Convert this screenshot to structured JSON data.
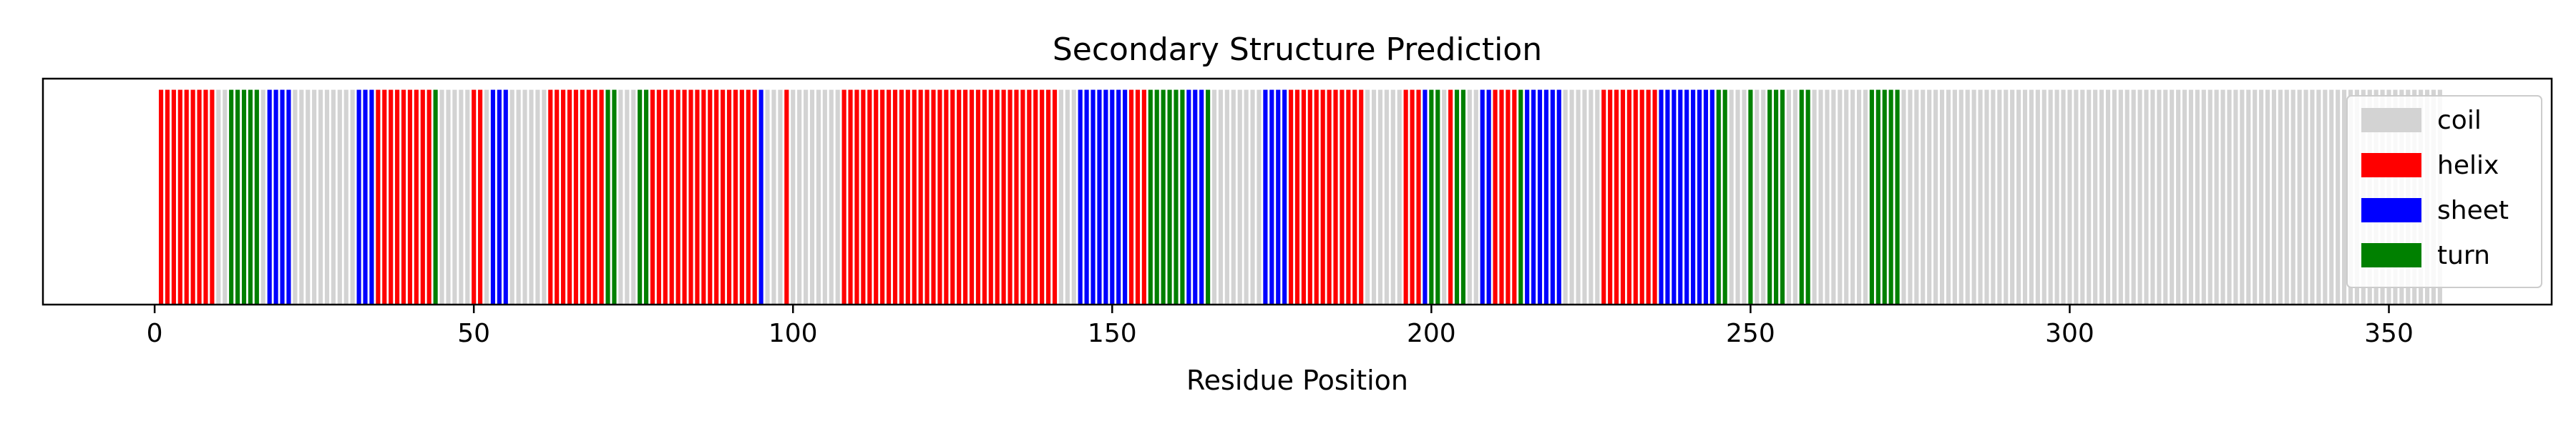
{
  "chart_data": {
    "type": "bar",
    "title": "Secondary Structure Prediction",
    "xlabel": "Residue Position",
    "ylabel": "",
    "xlim": [
      -17.5,
      375.5
    ],
    "ylim": [
      0,
      1.05
    ],
    "grid": false,
    "legend_position": "top-right",
    "x_ticks": [
      0,
      50,
      100,
      150,
      200,
      250,
      300,
      350
    ],
    "legend": [
      {
        "label": "coil",
        "color": "#d3d3d3"
      },
      {
        "label": "helix",
        "color": "#ff0000"
      },
      {
        "label": "sheet",
        "color": "#0000ff"
      },
      {
        "label": "turn",
        "color": "#008000"
      }
    ],
    "colors": {
      "coil": "#d3d3d3",
      "helix": "#ff0000",
      "sheet": "#0000ff",
      "turn": "#008000"
    },
    "bar_value": 1,
    "segments": [
      {
        "start": 1,
        "end": 9,
        "type": "helix"
      },
      {
        "start": 10,
        "end": 11,
        "type": "coil"
      },
      {
        "start": 12,
        "end": 16,
        "type": "turn"
      },
      {
        "start": 17,
        "end": 17,
        "type": "coil"
      },
      {
        "start": 18,
        "end": 21,
        "type": "sheet"
      },
      {
        "start": 22,
        "end": 31,
        "type": "coil"
      },
      {
        "start": 32,
        "end": 34,
        "type": "sheet"
      },
      {
        "start": 35,
        "end": 43,
        "type": "helix"
      },
      {
        "start": 44,
        "end": 44,
        "type": "turn"
      },
      {
        "start": 45,
        "end": 49,
        "type": "coil"
      },
      {
        "start": 50,
        "end": 51,
        "type": "helix"
      },
      {
        "start": 52,
        "end": 52,
        "type": "coil"
      },
      {
        "start": 53,
        "end": 55,
        "type": "sheet"
      },
      {
        "start": 56,
        "end": 61,
        "type": "coil"
      },
      {
        "start": 62,
        "end": 70,
        "type": "helix"
      },
      {
        "start": 71,
        "end": 72,
        "type": "turn"
      },
      {
        "start": 73,
        "end": 75,
        "type": "coil"
      },
      {
        "start": 76,
        "end": 77,
        "type": "turn"
      },
      {
        "start": 78,
        "end": 94,
        "type": "helix"
      },
      {
        "start": 95,
        "end": 95,
        "type": "sheet"
      },
      {
        "start": 96,
        "end": 98,
        "type": "coil"
      },
      {
        "start": 99,
        "end": 99,
        "type": "helix"
      },
      {
        "start": 100,
        "end": 107,
        "type": "coil"
      },
      {
        "start": 108,
        "end": 141,
        "type": "helix"
      },
      {
        "start": 142,
        "end": 144,
        "type": "coil"
      },
      {
        "start": 145,
        "end": 152,
        "type": "sheet"
      },
      {
        "start": 153,
        "end": 155,
        "type": "helix"
      },
      {
        "start": 156,
        "end": 161,
        "type": "turn"
      },
      {
        "start": 162,
        "end": 164,
        "type": "sheet"
      },
      {
        "start": 165,
        "end": 165,
        "type": "turn"
      },
      {
        "start": 166,
        "end": 173,
        "type": "coil"
      },
      {
        "start": 174,
        "end": 177,
        "type": "sheet"
      },
      {
        "start": 178,
        "end": 189,
        "type": "helix"
      },
      {
        "start": 190,
        "end": 195,
        "type": "coil"
      },
      {
        "start": 196,
        "end": 198,
        "type": "helix"
      },
      {
        "start": 199,
        "end": 199,
        "type": "sheet"
      },
      {
        "start": 200,
        "end": 201,
        "type": "turn"
      },
      {
        "start": 202,
        "end": 202,
        "type": "coil"
      },
      {
        "start": 203,
        "end": 203,
        "type": "helix"
      },
      {
        "start": 204,
        "end": 205,
        "type": "turn"
      },
      {
        "start": 206,
        "end": 207,
        "type": "coil"
      },
      {
        "start": 208,
        "end": 209,
        "type": "sheet"
      },
      {
        "start": 210,
        "end": 213,
        "type": "helix"
      },
      {
        "start": 214,
        "end": 214,
        "type": "turn"
      },
      {
        "start": 215,
        "end": 220,
        "type": "sheet"
      },
      {
        "start": 221,
        "end": 226,
        "type": "coil"
      },
      {
        "start": 227,
        "end": 235,
        "type": "helix"
      },
      {
        "start": 236,
        "end": 244,
        "type": "sheet"
      },
      {
        "start": 245,
        "end": 246,
        "type": "turn"
      },
      {
        "start": 247,
        "end": 249,
        "type": "coil"
      },
      {
        "start": 250,
        "end": 250,
        "type": "turn"
      },
      {
        "start": 251,
        "end": 252,
        "type": "coil"
      },
      {
        "start": 253,
        "end": 255,
        "type": "turn"
      },
      {
        "start": 256,
        "end": 257,
        "type": "coil"
      },
      {
        "start": 258,
        "end": 259,
        "type": "turn"
      },
      {
        "start": 260,
        "end": 268,
        "type": "coil"
      },
      {
        "start": 269,
        "end": 273,
        "type": "turn"
      },
      {
        "start": 274,
        "end": 358,
        "type": "coil"
      }
    ]
  }
}
